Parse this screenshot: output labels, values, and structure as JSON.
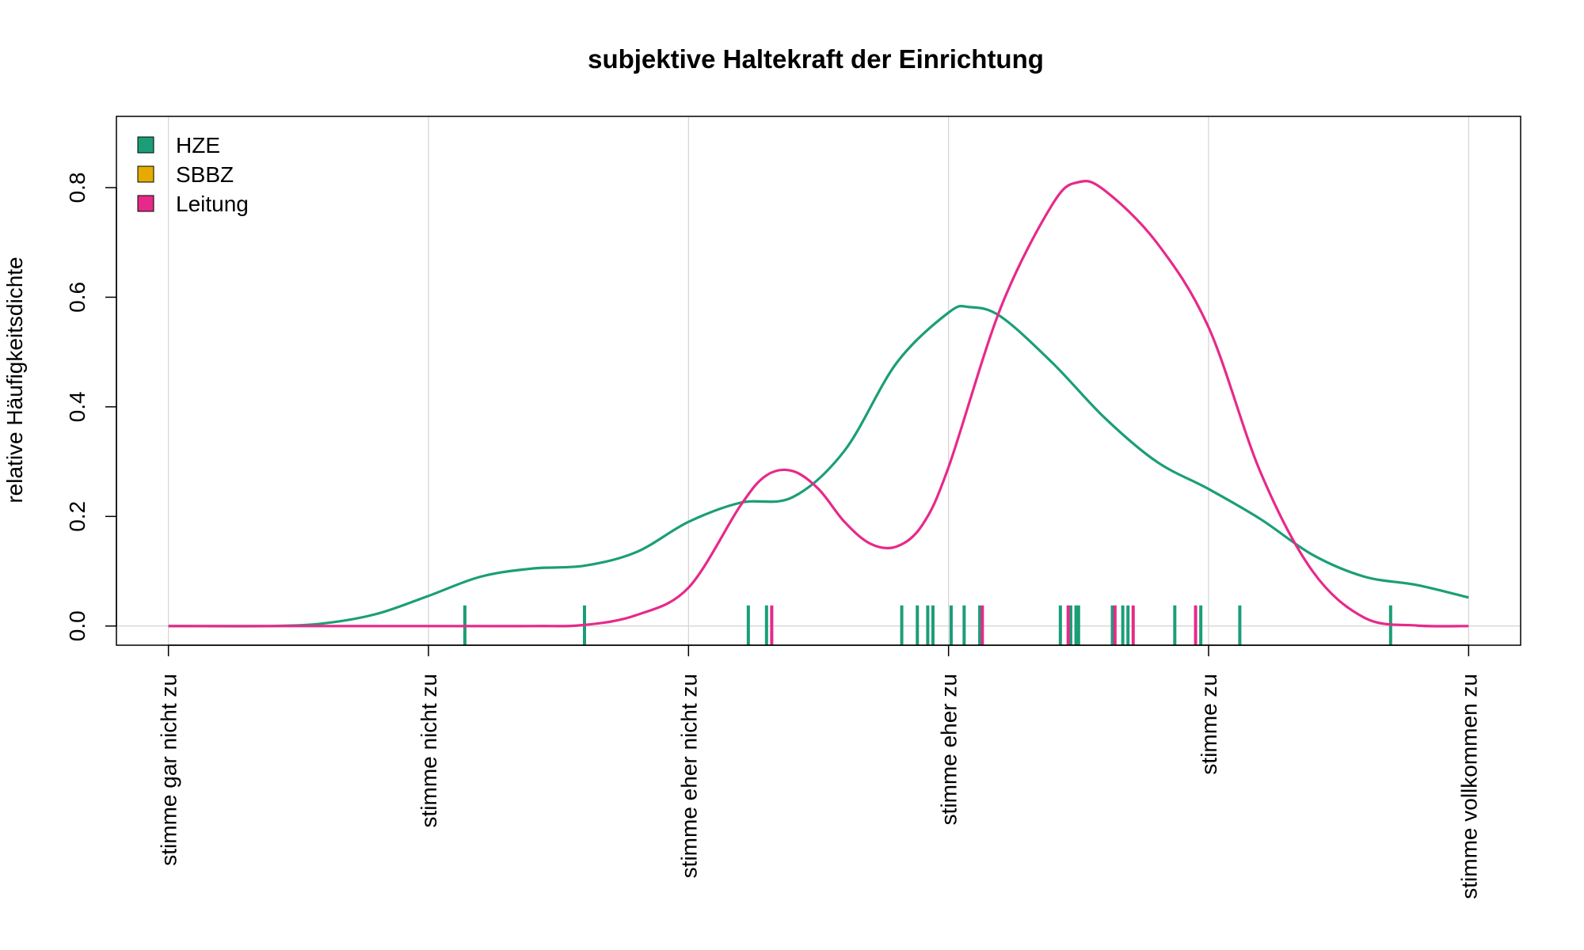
{
  "chart_data": {
    "type": "line",
    "title": "subjektive Haltekraft der Einrichtung",
    "xlabel": "",
    "ylabel": "relative Häufigkeitsdichte",
    "categories": [
      "stimme gar nicht zu",
      "stimme nicht zu",
      "stimme eher nicht zu",
      "stimme eher zu",
      "stimme zu",
      "stimme vollkommen zu"
    ],
    "xlim": [
      0.8,
      6.2
    ],
    "ylim": [
      -0.035,
      0.93
    ],
    "yticks": [
      "0.0",
      "0.2",
      "0.4",
      "0.6",
      "0.8"
    ],
    "ytick_values": [
      0,
      0.2,
      0.4,
      0.6,
      0.8
    ],
    "grid": "vertical at categories, horizontal at 0",
    "legend_position": "top-left",
    "series": [
      {
        "name": "HZE",
        "color": "#1b9e77",
        "x": [
          1.0,
          1.4,
          1.6,
          1.8,
          2.0,
          2.2,
          2.4,
          2.6,
          2.8,
          3.0,
          3.2,
          3.4,
          3.6,
          3.8,
          4.0,
          4.08,
          4.2,
          4.4,
          4.6,
          4.8,
          5.0,
          5.2,
          5.4,
          5.6,
          5.8,
          6.0
        ],
        "values": [
          0.0,
          0.0,
          0.005,
          0.022,
          0.055,
          0.09,
          0.105,
          0.11,
          0.135,
          0.19,
          0.225,
          0.235,
          0.32,
          0.48,
          0.572,
          0.582,
          0.565,
          0.48,
          0.38,
          0.3,
          0.25,
          0.195,
          0.13,
          0.09,
          0.075,
          0.052
        ]
      },
      {
        "name": "SBBZ",
        "color": "#e6ab02",
        "x": [],
        "values": []
      },
      {
        "name": "Leitung",
        "color": "#e7298a",
        "x": [
          1.0,
          2.0,
          2.4,
          2.6,
          2.8,
          3.0,
          3.2,
          3.3,
          3.4,
          3.5,
          3.6,
          3.7,
          3.8,
          3.9,
          4.0,
          4.2,
          4.4,
          4.5,
          4.6,
          4.8,
          5.0,
          5.2,
          5.4,
          5.6,
          5.8,
          6.0
        ],
        "values": [
          0.0,
          0.0,
          0.0,
          0.002,
          0.02,
          0.07,
          0.22,
          0.275,
          0.283,
          0.25,
          0.19,
          0.15,
          0.145,
          0.185,
          0.29,
          0.58,
          0.77,
          0.81,
          0.795,
          0.7,
          0.545,
          0.28,
          0.1,
          0.015,
          0.001,
          0.0
        ]
      }
    ],
    "rug": [
      {
        "series": "HZE",
        "x": [
          2.14,
          2.6,
          3.23,
          3.3,
          3.82,
          3.88,
          3.92,
          3.94,
          4.01,
          4.06,
          4.12,
          4.43,
          4.47,
          4.49,
          4.5,
          4.63,
          4.67,
          4.69,
          4.87,
          4.97,
          5.12,
          5.7
        ]
      },
      {
        "series": "Leitung",
        "x": [
          3.32,
          4.13,
          4.46,
          4.64,
          4.71,
          4.95
        ]
      }
    ]
  },
  "legend": {
    "items": [
      {
        "label": "HZE",
        "color": "#1b9e77"
      },
      {
        "label": "SBBZ",
        "color": "#e6ab02"
      },
      {
        "label": "Leitung",
        "color": "#e7298a"
      }
    ]
  }
}
